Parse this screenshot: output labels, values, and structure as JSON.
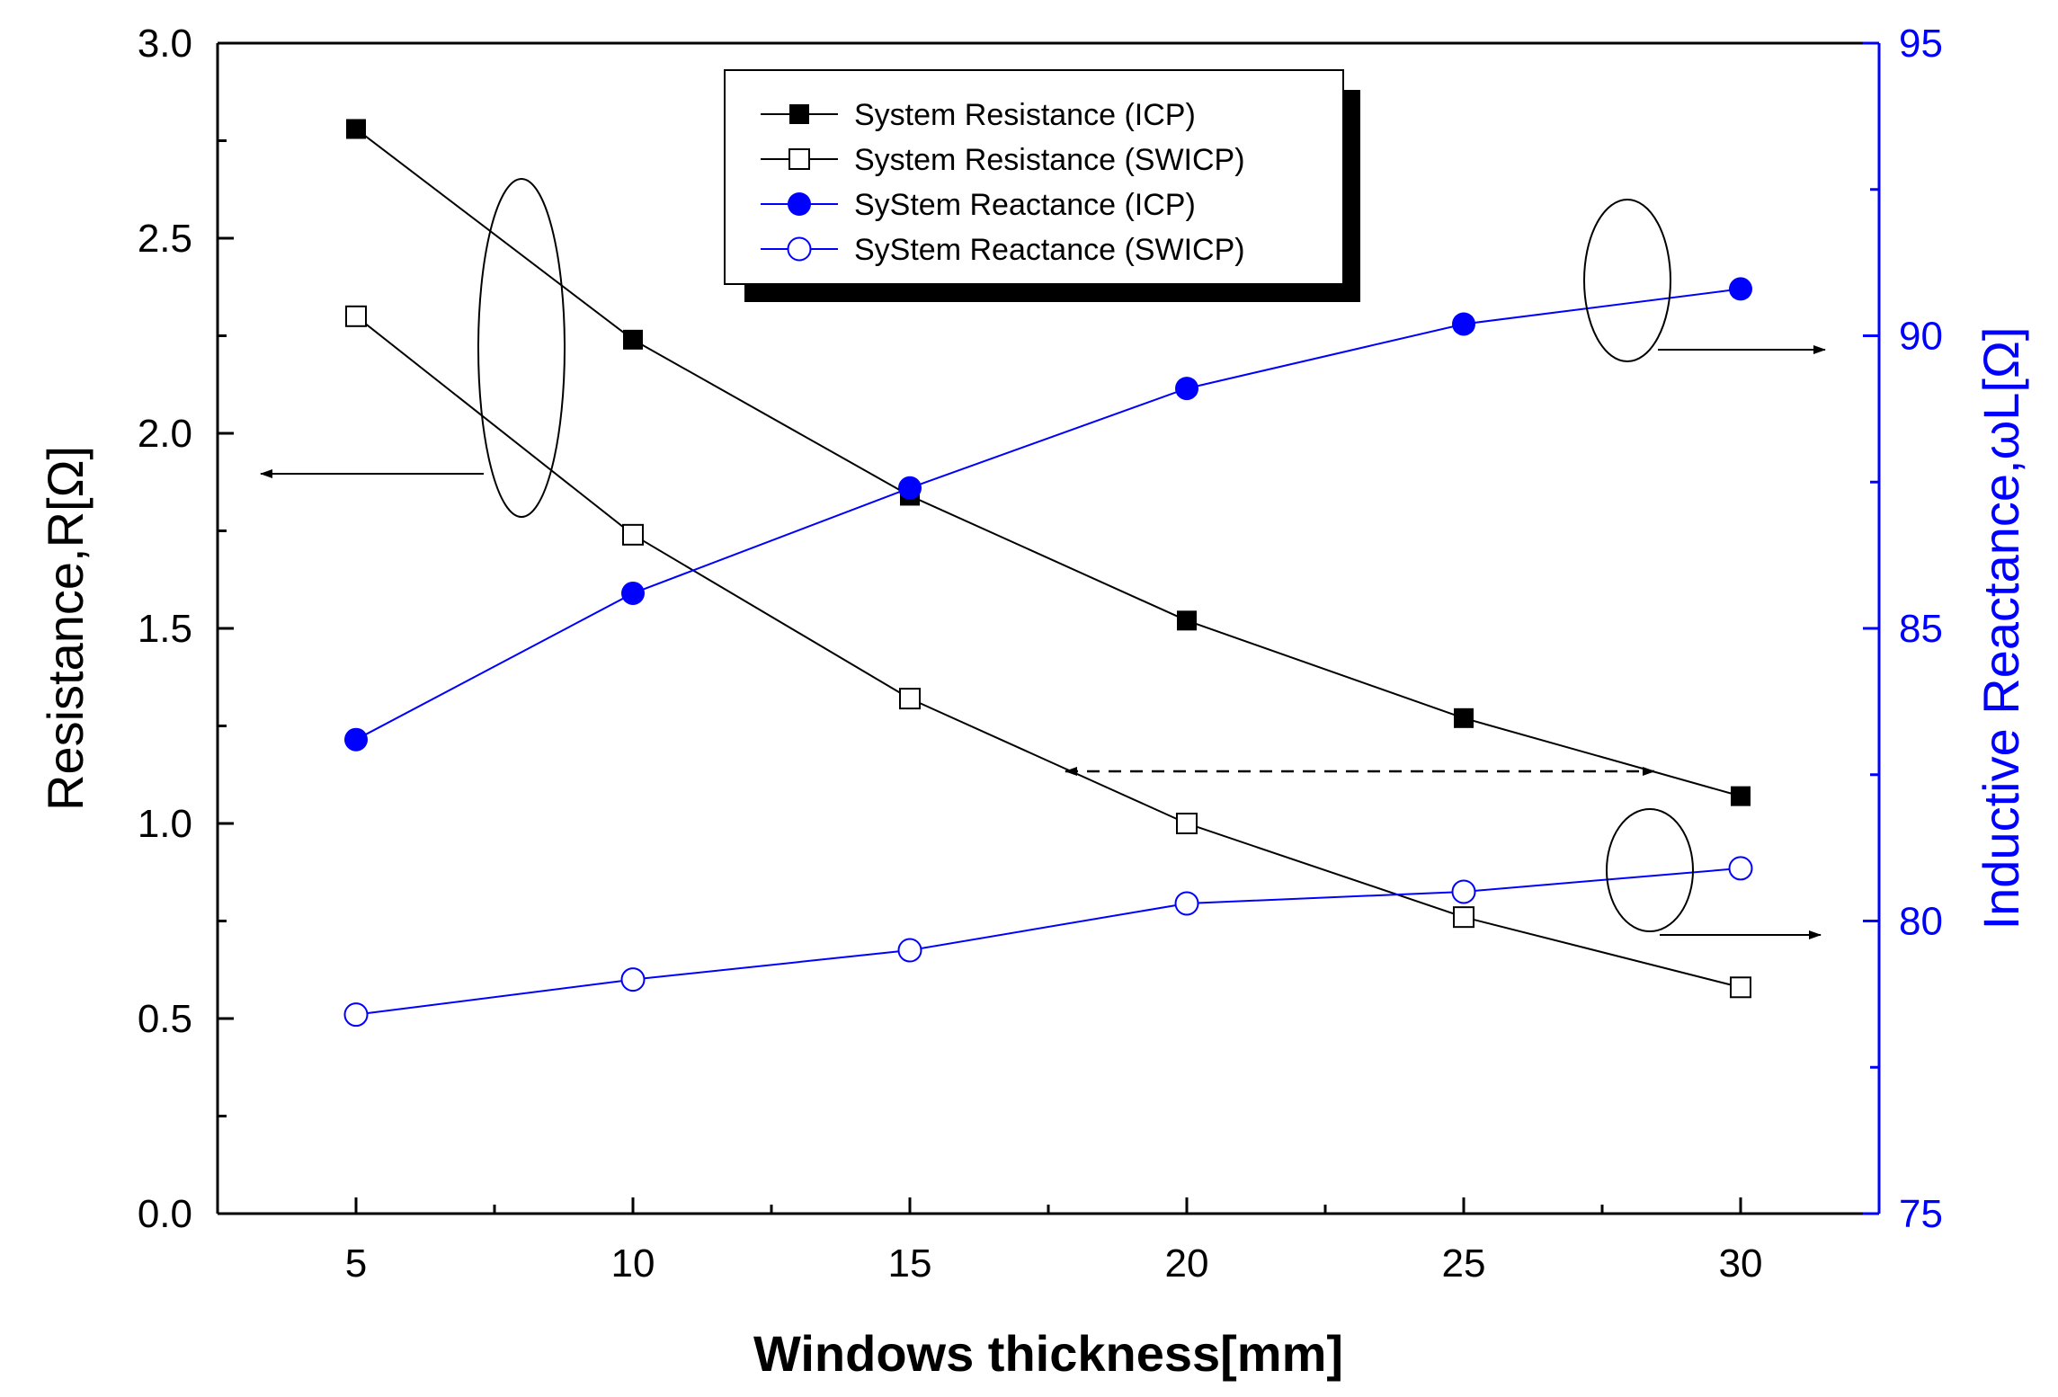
{
  "chart_data": {
    "type": "line",
    "x": [
      5,
      10,
      15,
      20,
      25,
      30
    ],
    "xlabel": "Windows thickness[mm]",
    "ylabel_left": "Resistance,R[Ω]",
    "ylabel_right": "Inductive Reactance,ωL[Ω]",
    "xlim": [
      2.5,
      32.5
    ],
    "ylim_left": [
      0.0,
      3.0
    ],
    "ylim_right": [
      75,
      95
    ],
    "x_ticks": [
      5,
      10,
      15,
      20,
      25,
      30
    ],
    "y_ticks_left": [
      "0.0",
      "0.5",
      "1.0",
      "1.5",
      "2.0",
      "2.5",
      "3.0"
    ],
    "y_ticks_right": [
      "75",
      "80",
      "85",
      "90",
      "95"
    ],
    "legend_position": "top-center",
    "series": [
      {
        "name": "System Resistance (ICP)",
        "axis": "left",
        "marker": "filled-square",
        "color": "#000000",
        "values": [
          2.78,
          2.24,
          1.84,
          1.52,
          1.27,
          1.07
        ]
      },
      {
        "name": "System Resistance (SWICP)",
        "axis": "left",
        "marker": "open-square",
        "color": "#000000",
        "values": [
          2.3,
          1.74,
          1.32,
          1.0,
          0.76,
          0.58
        ]
      },
      {
        "name": "SyStem Reactance (ICP)",
        "axis": "right",
        "marker": "filled-circle",
        "color": "#0000ff",
        "values": [
          83.1,
          85.6,
          87.4,
          89.1,
          90.2,
          90.8
        ]
      },
      {
        "name": "SyStem Reactance (SWICP)",
        "axis": "right",
        "marker": "open-circle",
        "color": "#0000ff",
        "values": [
          78.4,
          79.0,
          79.5,
          80.3,
          80.5,
          80.9
        ]
      }
    ]
  }
}
